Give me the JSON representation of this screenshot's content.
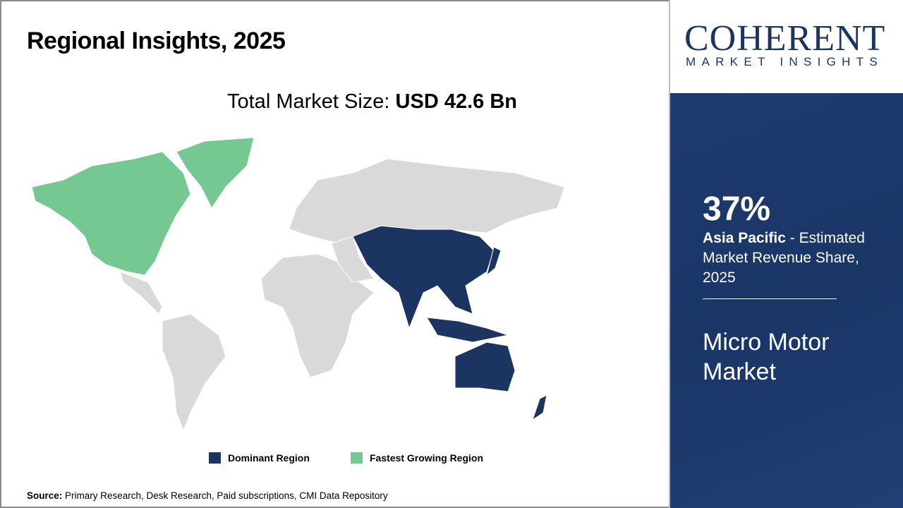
{
  "header": {
    "title": "Regional Insights, 2025"
  },
  "total": {
    "label": "Total Market Size: ",
    "value": "USD 42.6 Bn"
  },
  "legend": [
    {
      "label": "Dominant Region",
      "color": "#1b3462"
    },
    {
      "label": "Fastest Growing Region",
      "color": "#76c893"
    }
  ],
  "source": {
    "label": "Source:",
    "text": " Primary Research, Desk Research, Paid subscriptions, CMI Data Repository"
  },
  "logo": {
    "brand": "COHERENT",
    "tagline": "MARKET INSIGHTS"
  },
  "panel": {
    "share": "37%",
    "region": "Asia Pacific",
    "desc": " - Estimated Market Revenue Share, 2025",
    "market": "Micro Motor Market"
  },
  "map": {
    "dominant_region": "Asia Pacific",
    "fastest_growing_region": "North America",
    "colors": {
      "dominant": "#1b3462",
      "fastest": "#76c893",
      "other": "#d9d9d9"
    }
  }
}
